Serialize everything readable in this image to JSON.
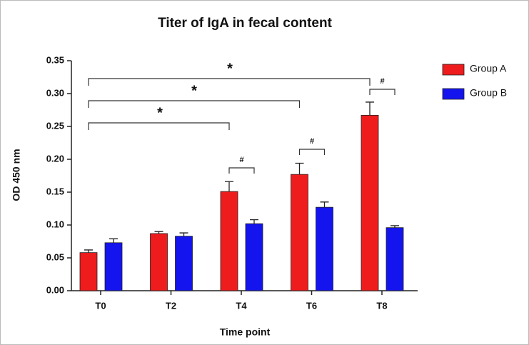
{
  "chart_data": {
    "type": "bar",
    "title": "Titer of IgA in fecal content",
    "x_label": "Time point",
    "y_label": "OD 450 nm",
    "categories": [
      "T0",
      "T2",
      "T4",
      "T6",
      "T8"
    ],
    "series": [
      {
        "name": "Group A",
        "color": "#ee1c1c",
        "values": [
          0.058,
          0.087,
          0.151,
          0.177,
          0.267
        ],
        "errors": [
          0.004,
          0.003,
          0.015,
          0.017,
          0.02
        ]
      },
      {
        "name": "Group B",
        "color": "#1414ee",
        "values": [
          0.073,
          0.083,
          0.102,
          0.127,
          0.096
        ],
        "errors": [
          0.006,
          0.005,
          0.006,
          0.008,
          0.003
        ]
      }
    ],
    "ylim": [
      0,
      0.35
    ],
    "yticks": [
      {
        "value": 0,
        "label": "0.00"
      },
      {
        "value": 0.05,
        "label": "0.05"
      },
      {
        "value": 0.1,
        "label": "0.10"
      },
      {
        "value": 0.15,
        "label": "0.15"
      },
      {
        "value": 0.2,
        "label": "0.20"
      },
      {
        "value": 0.25,
        "label": "0.25"
      },
      {
        "value": 0.3,
        "label": "0.30"
      },
      {
        "value": 0.35,
        "label": "0.35"
      }
    ],
    "annotations": [
      {
        "text": "*",
        "color": "#ee1c1c"
      },
      {
        "text": "*",
        "color": "#ee1c1c"
      },
      {
        "text": "*",
        "color": "#ee1c1c"
      },
      {
        "text": "#",
        "color": "#000000"
      },
      {
        "text": "#",
        "color": "#000000"
      },
      {
        "text": "#",
        "color": "#000000"
      }
    ],
    "legend": "right"
  }
}
